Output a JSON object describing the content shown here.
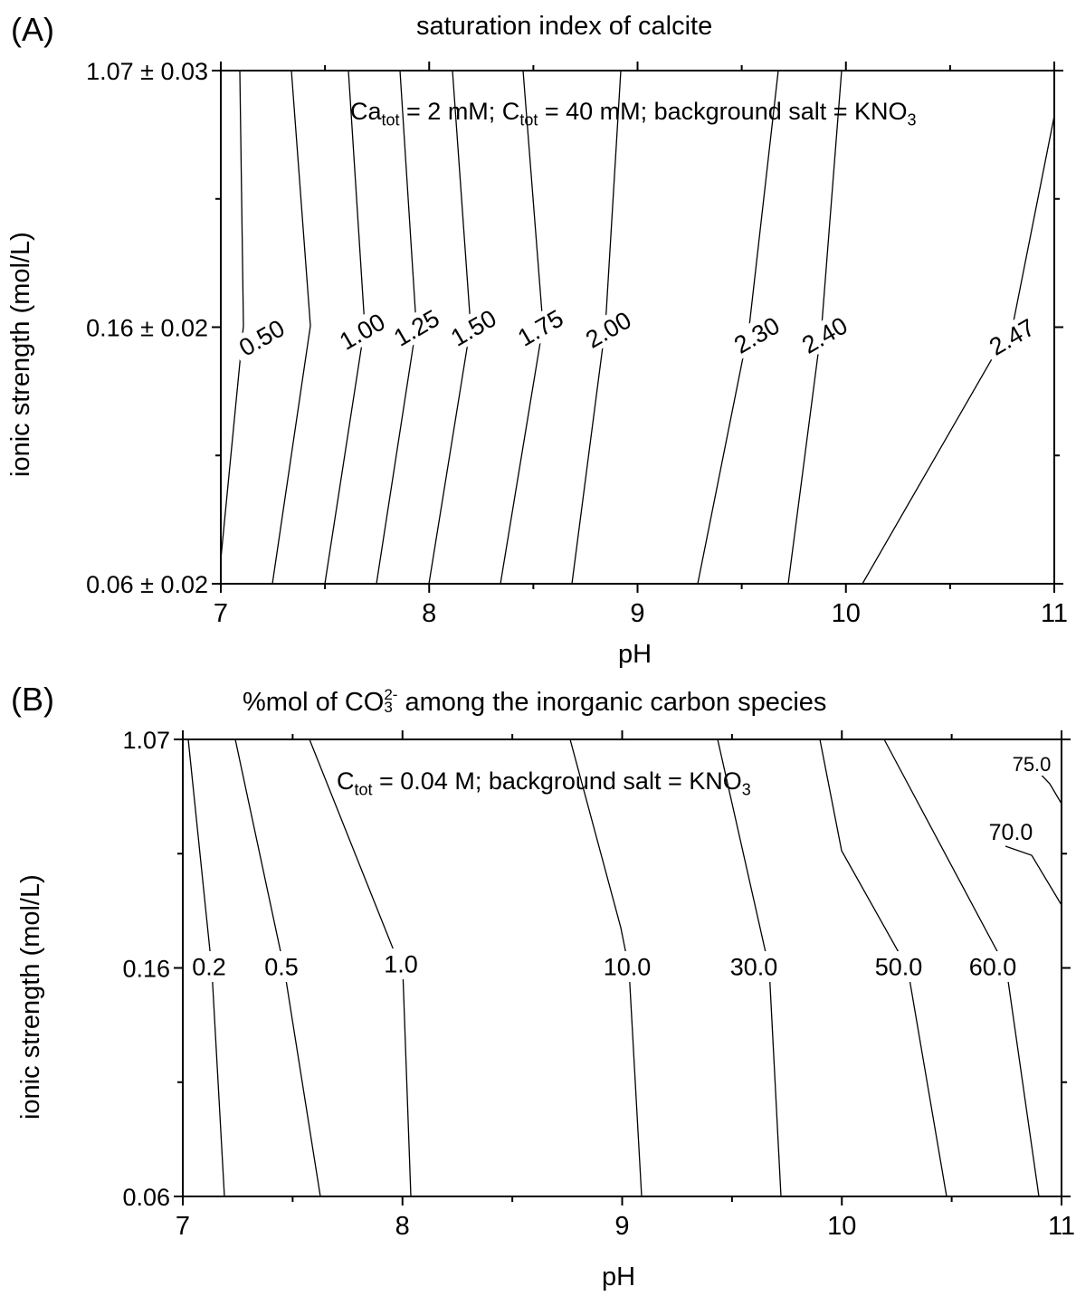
{
  "panelA": {
    "tag": "(A)",
    "title": "saturation index of calcite",
    "annotation": {
      "ca": "Ca",
      "ca_sub": "tot",
      "ca_rest": " = 2 mM; C",
      "c_sub": "tot",
      "c_rest": " = 40 mM; background salt = KNO",
      "no_sub": "3"
    },
    "xlabel": "pH",
    "ylabel": "ionic strength (mol/L)"
  },
  "panelB": {
    "tag": "(B)",
    "title": {
      "pre": "%mol of CO",
      "sup": "2-",
      "sub": "3",
      "post": " among the inorganic carbon species"
    },
    "annotation": {
      "c": "C",
      "c_sub": "tot",
      "rest": " = 0.04 M; background salt = KNO",
      "no_sub": "3"
    },
    "xlabel": "pH",
    "ylabel": "ionic strength (mol/L)"
  },
  "chart_data": [
    {
      "type": "contour",
      "title": "saturation index of calcite",
      "xlabel": "pH",
      "ylabel": "ionic strength (mol/L)",
      "xlim": [
        7,
        11
      ],
      "xticks": [
        "7",
        "8",
        "9",
        "10",
        "11"
      ],
      "yticks": [
        "0.06 ± 0.02",
        "0.16 ± 0.02",
        "1.07 ± 0.03"
      ],
      "contours": [
        {
          "label": "0.50",
          "x_low": 7.0,
          "x_mid": 7.13,
          "x_high": 7.1
        },
        {
          "label": "1.00",
          "x_low": 7.25,
          "x_mid": 7.42,
          "x_high": 7.33
        },
        {
          "label": "1.25",
          "x_low": 7.5,
          "x_mid": 7.68,
          "x_high": 7.6
        },
        {
          "label": "1.50",
          "x_low": 7.75,
          "x_mid": 7.93,
          "x_high": 7.85
        },
        {
          "label": "1.75",
          "x_low": 8.0,
          "x_mid": 8.2,
          "x_high": 8.1
        },
        {
          "label": "2.00",
          "x_low": 8.35,
          "x_mid": 8.55,
          "x_high": 8.45
        },
        {
          "label": "2.30",
          "x_low": 8.69,
          "x_mid": 8.9,
          "x_high": 8.8
        },
        {
          "label": "2.40",
          "x_low": 9.3,
          "x_mid": 9.55,
          "x_high": 9.45
        },
        {
          "label": "2.47",
          "x_low": 9.72,
          "x_mid": 9.98,
          "x_high": 9.88
        },
        {
          "label": "2.47",
          "x_low": 10.08,
          "x_mid": 10.72,
          "x_high": 11.0
        }
      ]
    },
    {
      "type": "contour",
      "title": "%mol of CO3 2- among the inorganic carbon species",
      "xlabel": "pH",
      "ylabel": "ionic strength (mol/L)",
      "xlim": [
        7,
        11
      ],
      "xticks": [
        "7",
        "8",
        "9",
        "10",
        "11"
      ],
      "yticks": [
        "0.06",
        "0.16",
        "1.07"
      ],
      "contours": [
        {
          "label": "0.2",
          "x_low": 7.19,
          "x_mid": 7.12,
          "x_high": 7.02
        },
        {
          "label": "0.5",
          "x_low": 7.62,
          "x_mid": 7.44,
          "x_high": 7.24
        },
        {
          "label": "1.0",
          "x_low": 8.04,
          "x_mid": 7.98,
          "x_high": 7.57
        },
        {
          "label": "10.0",
          "x_low": 9.09,
          "x_mid": 9.02,
          "x_high": 8.8
        },
        {
          "label": "30.0",
          "x_low": 9.72,
          "x_mid": 9.62,
          "x_high": 9.46
        },
        {
          "label": "50.0",
          "x_low": 10.47,
          "x_mid": 10.3,
          "x_high": 10.18
        },
        {
          "label": "60.0",
          "x_low": 10.89,
          "x_mid": 10.73,
          "x_high": 10.47
        },
        {
          "label": "70.0",
          "x_low": 11.0,
          "x_mid": 11.0,
          "x_high": 10.85
        },
        {
          "label": "75.0",
          "x_low": 11.0,
          "x_mid": 11.0,
          "x_high": 11.0
        }
      ]
    }
  ]
}
